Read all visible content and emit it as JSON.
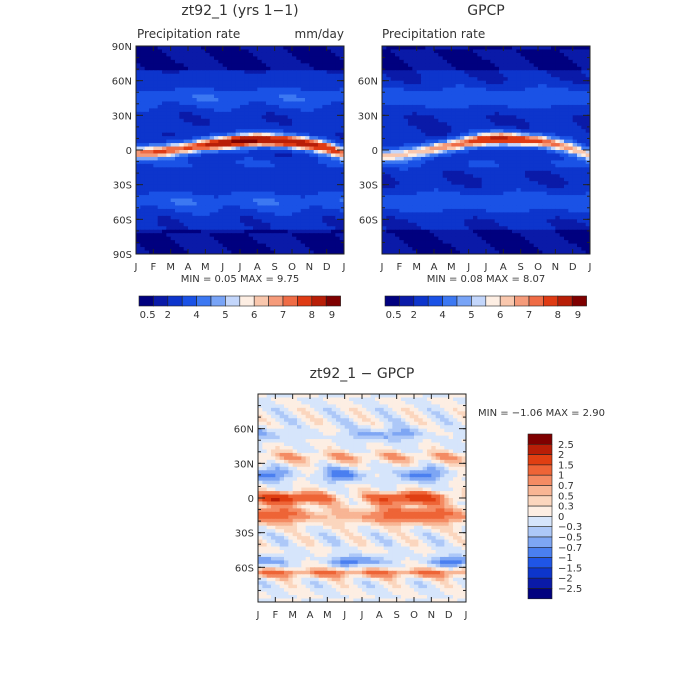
{
  "palette": {
    "precip": [
      "#00007f",
      "#0a1aa8",
      "#0d35cc",
      "#1a52e6",
      "#3c78f2",
      "#78a4f7",
      "#c3d6fb",
      "#fdeee3",
      "#f9c7ad",
      "#f59b7a",
      "#ef6c46",
      "#df3b14",
      "#b81e07",
      "#7f0000"
    ],
    "diff": [
      "#00007f",
      "#0a1aa8",
      "#0d35cc",
      "#1f55e6",
      "#4a7ff0",
      "#7ea6f4",
      "#adc8f8",
      "#d6e5fb",
      "#fdeee3",
      "#fbd6be",
      "#f8b594",
      "#f48b63",
      "#ee6436",
      "#e03f12",
      "#b81e07",
      "#7f0000"
    ]
  },
  "panels": [
    {
      "title": "zt92_1  (yrs 1−1)",
      "subtitle_left": "Precipitation rate",
      "subtitle_right": "mm/day",
      "min_max_text": "MIN =    0.05  MAX =     9.75",
      "y_ticks": [
        "90N",
        "60N",
        "30N",
        "0",
        "30S",
        "60S",
        "90S"
      ],
      "x_ticks": [
        "J",
        "F",
        "M",
        "A",
        "M",
        "J",
        "J",
        "A",
        "S",
        "O",
        "N",
        "D",
        "J"
      ],
      "colorbar_labels": [
        "0.5",
        "2",
        "4",
        "5",
        "6",
        "7",
        "8",
        "9"
      ]
    },
    {
      "title": "GPCP",
      "subtitle_left": "Precipitation rate",
      "subtitle_right": "",
      "min_max_text": "MIN =    0.08  MAX =     8.07",
      "y_ticks": [
        "60N",
        "30N",
        "0",
        "30S",
        "60S"
      ],
      "x_ticks": [
        "J",
        "F",
        "M",
        "A",
        "M",
        "J",
        "J",
        "A",
        "S",
        "O",
        "N",
        "D",
        "J"
      ],
      "colorbar_labels": [
        "0.5",
        "2",
        "4",
        "5",
        "6",
        "7",
        "8",
        "9"
      ]
    },
    {
      "title": "zt92_1  −  GPCP",
      "min_max_text": "MIN =   −1.06  MAX =     2.90",
      "y_ticks": [
        "60N",
        "30N",
        "0",
        "30S",
        "60S"
      ],
      "x_ticks": [
        "J",
        "F",
        "M",
        "A",
        "M",
        "J",
        "J",
        "A",
        "S",
        "O",
        "N",
        "D",
        "J"
      ],
      "colorbar_labels": [
        "2.5",
        "2",
        "1.5",
        "1",
        "0.7",
        "0.5",
        "0.3",
        "0",
        "−0.3",
        "−0.5",
        "−0.7",
        "−1",
        "−1.5",
        "−2",
        "−2.5"
      ]
    }
  ],
  "chart_data": [
    {
      "type": "heatmap",
      "title": "zt92_1  (yrs 1−1)",
      "variable": "Precipitation rate",
      "units": "mm/day",
      "x": [
        "J",
        "F",
        "M",
        "A",
        "M",
        "J",
        "J",
        "A",
        "S",
        "O",
        "N",
        "D",
        "J"
      ],
      "y_range": [
        -90,
        90
      ],
      "min": 0.05,
      "max": 9.75,
      "levels": [
        0.5,
        1,
        2,
        3,
        4,
        4.5,
        5,
        5.5,
        6,
        6.5,
        7,
        8,
        9
      ],
      "itcz_peak_lat_by_month": [
        -3,
        -2,
        0,
        2,
        4,
        6,
        8,
        9,
        8,
        7,
        5,
        2,
        -3
      ],
      "itcz_peak_value_by_month": [
        6.5,
        6.5,
        7,
        7.5,
        8,
        8.5,
        9.2,
        9.75,
        9.3,
        8.8,
        8,
        7.5,
        6.5
      ]
    },
    {
      "type": "heatmap",
      "title": "GPCP",
      "variable": "Precipitation rate",
      "x": [
        "J",
        "F",
        "M",
        "A",
        "M",
        "J",
        "J",
        "A",
        "S",
        "O",
        "N",
        "D",
        "J"
      ],
      "y_range": [
        -90,
        90
      ],
      "min": 0.08,
      "max": 8.07,
      "levels": [
        0.5,
        1,
        2,
        3,
        4,
        4.5,
        5,
        5.5,
        6,
        6.5,
        7,
        8,
        9
      ],
      "itcz_peak_lat_by_month": [
        -5,
        -4,
        -2,
        1,
        4,
        7,
        9,
        10,
        9,
        8,
        5,
        1,
        -5
      ],
      "itcz_peak_value_by_month": [
        5.5,
        5.5,
        5.8,
        6.2,
        6.8,
        7.3,
        7.8,
        8.07,
        7.9,
        7.4,
        6.8,
        6,
        5.5
      ]
    },
    {
      "type": "heatmap",
      "title": "zt92_1  −  GPCP",
      "x": [
        "J",
        "F",
        "M",
        "A",
        "M",
        "J",
        "J",
        "A",
        "S",
        "O",
        "N",
        "D",
        "J"
      ],
      "y_range": [
        -90,
        90
      ],
      "min": -1.06,
      "max": 2.9,
      "levels": [
        -2.5,
        -2,
        -1.5,
        -1,
        -0.7,
        -0.5,
        -0.3,
        0,
        0.3,
        0.5,
        0.7,
        1,
        1.5,
        2,
        2.5
      ]
    }
  ]
}
